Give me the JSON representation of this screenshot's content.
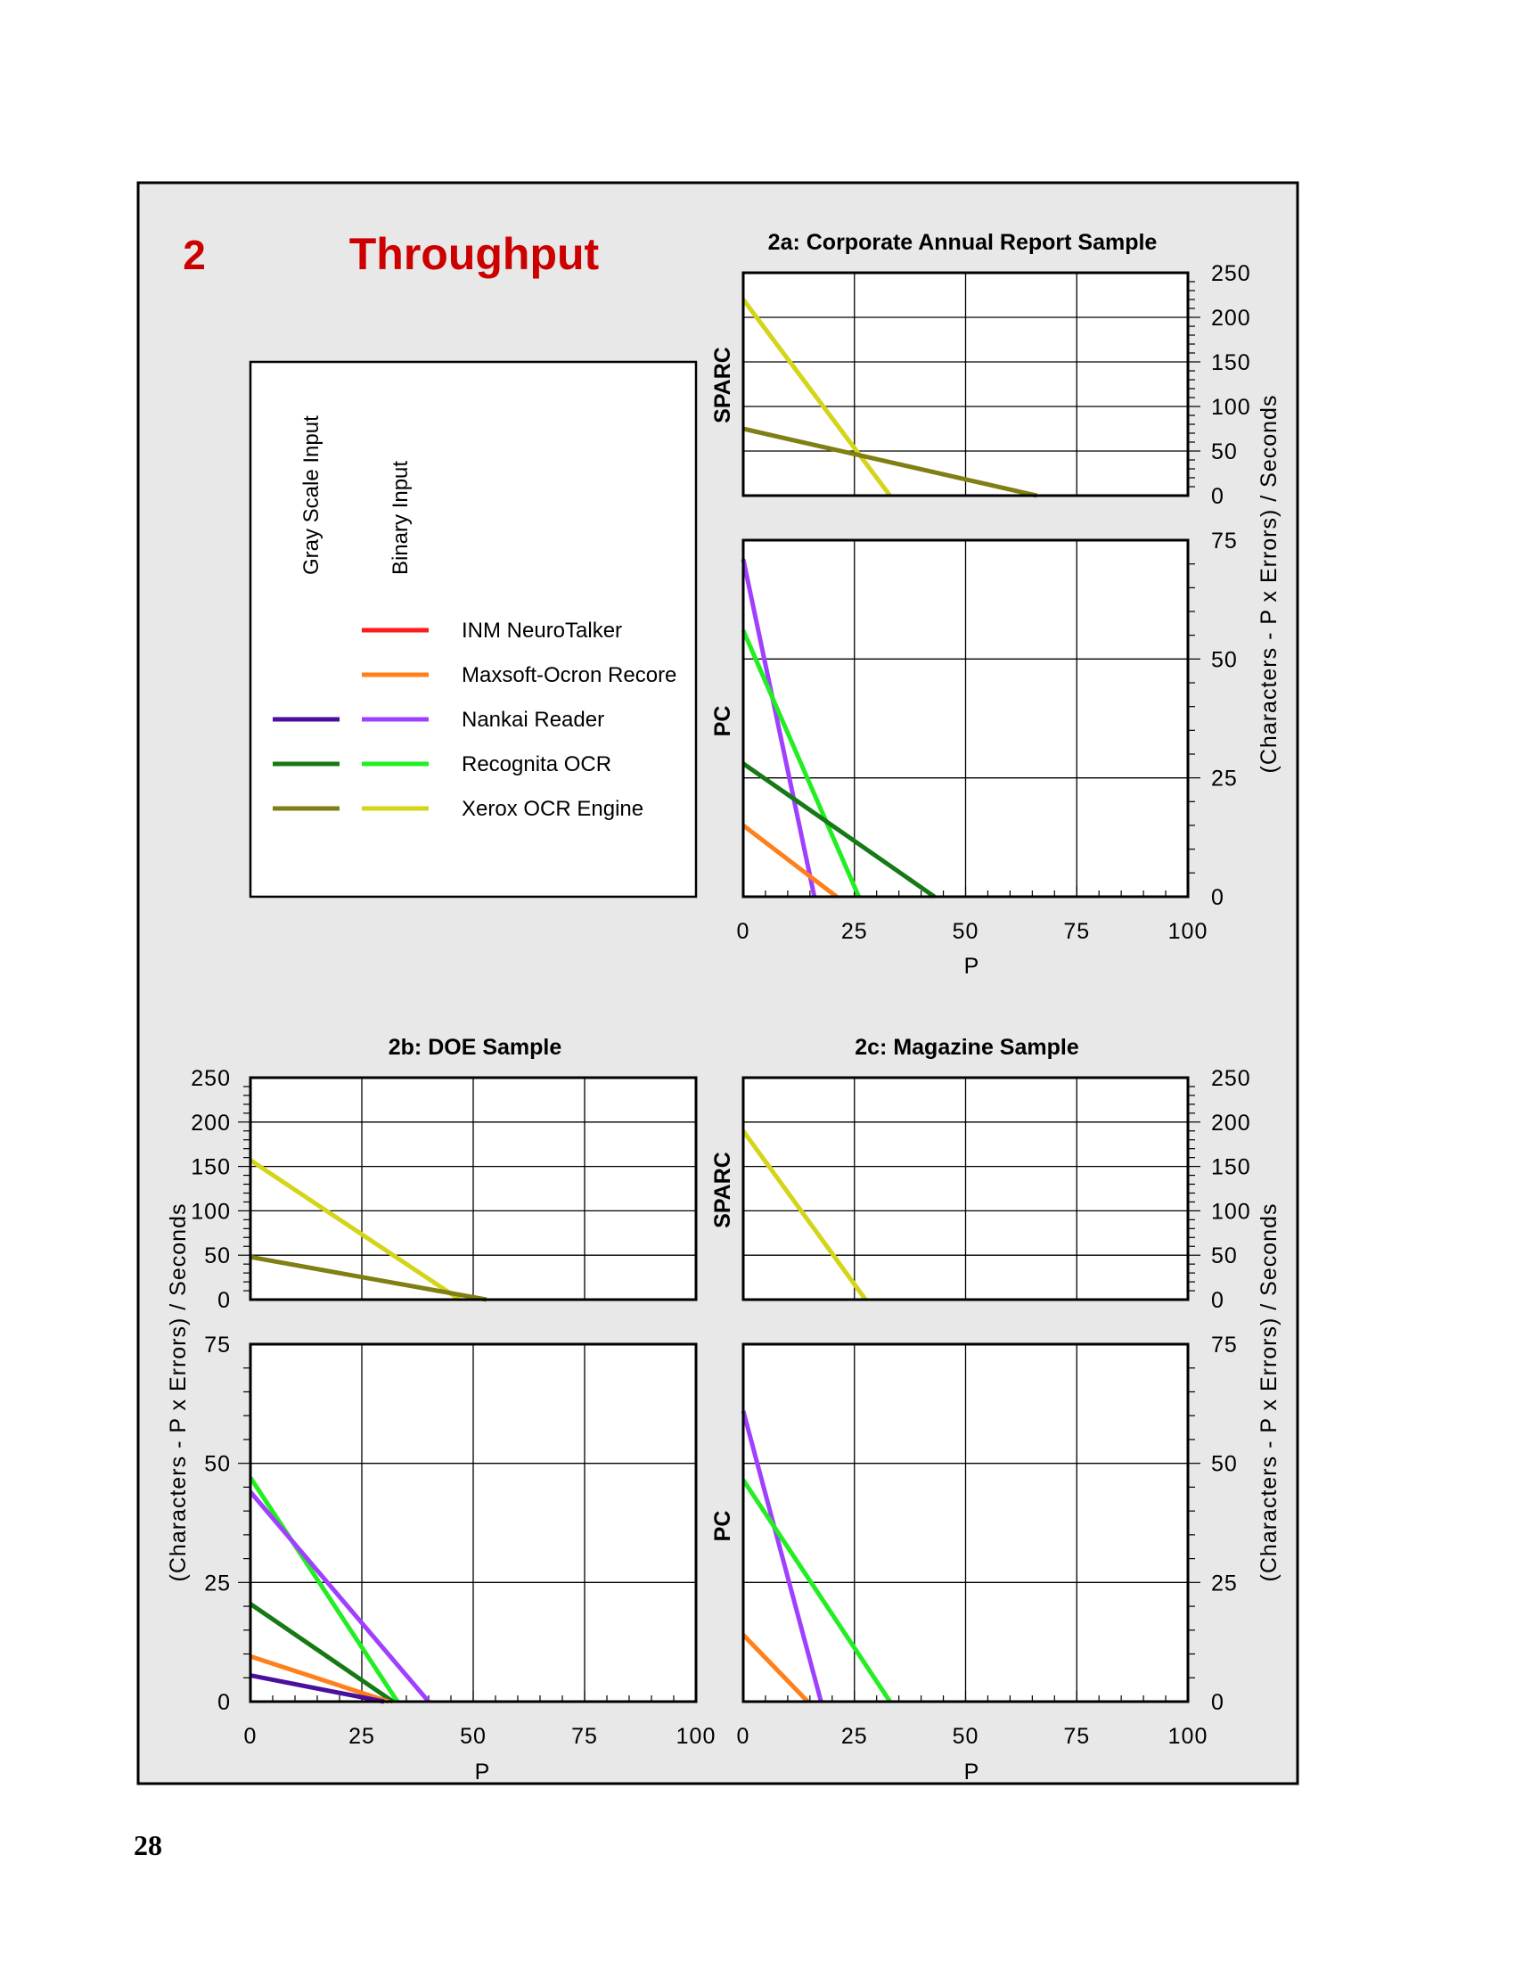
{
  "section": {
    "number": "2",
    "title": "Throughput"
  },
  "colors": {
    "title_red": "#cc0000",
    "panel_bg": "#e8e8e8",
    "plot_bg": "#ffffff",
    "axis": "#000000"
  },
  "legend": {
    "column_headers": [
      "Gray Scale Input",
      "Binary Input"
    ],
    "entries": [
      {
        "label": "INM NeuroTalker",
        "gray_color": null,
        "binary_color": "#ff1a1a"
      },
      {
        "label": "Maxsoft-Ocron Recore",
        "gray_color": null,
        "binary_color": "#ff7f1a"
      },
      {
        "label": "Nankai Reader",
        "gray_color": "#4b0fa0",
        "binary_color": "#a040ff"
      },
      {
        "label": "Recognita OCR",
        "gray_color": "#157a15",
        "binary_color": "#22ee22"
      },
      {
        "label": "Xerox OCR Engine",
        "gray_color": "#7f7f14",
        "binary_color": "#d4d41a"
      }
    ]
  },
  "page_number": "28",
  "chart_data": [
    {
      "id": "2a",
      "type": "line",
      "title": "2a:  Corporate Annual Report Sample",
      "xlabel": "P",
      "ylabel": "(Characters  -  P  x  Errors)  /  Seconds",
      "xlim": [
        0,
        100
      ],
      "x_ticks": [
        "0",
        "25",
        "50",
        "75",
        "100"
      ],
      "subplots": [
        {
          "label": "SPARC",
          "ylim": [
            0,
            250
          ],
          "y_ticks": [
            "250",
            "200",
            "150",
            "100",
            "50",
            "0"
          ],
          "series": [
            {
              "system": "Xerox OCR Engine",
              "input": "Binary",
              "color": "#d4d41a",
              "x": [
                0,
                33
              ],
              "y": [
                220,
                0
              ]
            },
            {
              "system": "Xerox OCR Engine",
              "input": "Gray Scale",
              "color": "#7f7f14",
              "x": [
                0,
                66
              ],
              "y": [
                75,
                0
              ]
            }
          ]
        },
        {
          "label": "PC",
          "ylim": [
            0,
            75
          ],
          "y_ticks": [
            "75",
            "50",
            "25",
            "0"
          ],
          "series": [
            {
              "system": "Nankai Reader",
              "input": "Binary",
              "color": "#a040ff",
              "x": [
                0,
                16
              ],
              "y": [
                71,
                0
              ]
            },
            {
              "system": "Recognita OCR",
              "input": "Binary",
              "color": "#22ee22",
              "x": [
                0,
                26
              ],
              "y": [
                56,
                0
              ]
            },
            {
              "system": "Recognita OCR",
              "input": "Gray Scale",
              "color": "#157a15",
              "x": [
                0,
                43
              ],
              "y": [
                28,
                0
              ]
            },
            {
              "system": "Maxsoft-Ocron Recore",
              "input": "Binary",
              "color": "#ff7f1a",
              "x": [
                0,
                21
              ],
              "y": [
                15,
                0
              ]
            }
          ]
        }
      ]
    },
    {
      "id": "2b",
      "type": "line",
      "title": "2b:  DOE Sample",
      "xlabel": "P",
      "ylabel": "(Characters  -  P  x  Errors)  /  Seconds",
      "xlim": [
        0,
        100
      ],
      "x_ticks": [
        "0",
        "25",
        "50",
        "75",
        "100"
      ],
      "subplots": [
        {
          "label": "",
          "ylim": [
            0,
            250
          ],
          "y_ticks": [
            "250",
            "200",
            "150",
            "100",
            "50",
            "0"
          ],
          "series": [
            {
              "system": "Xerox OCR Engine",
              "input": "Binary",
              "color": "#d4d41a",
              "x": [
                0,
                47
              ],
              "y": [
                157,
                0
              ]
            },
            {
              "system": "Xerox OCR Engine",
              "input": "Gray Scale",
              "color": "#7f7f14",
              "x": [
                0,
                53
              ],
              "y": [
                48,
                0
              ]
            }
          ]
        },
        {
          "label": "",
          "ylim": [
            0,
            75
          ],
          "y_ticks": [
            "75",
            "50",
            "25",
            "0"
          ],
          "series": [
            {
              "system": "Recognita OCR",
              "input": "Binary",
              "color": "#22ee22",
              "x": [
                0,
                33
              ],
              "y": [
                47,
                0
              ]
            },
            {
              "system": "Nankai Reader",
              "input": "Binary",
              "color": "#a040ff",
              "x": [
                0,
                40
              ],
              "y": [
                44,
                0
              ]
            },
            {
              "system": "Recognita OCR",
              "input": "Gray Scale",
              "color": "#157a15",
              "x": [
                0,
                32
              ],
              "y": [
                20.5,
                0
              ]
            },
            {
              "system": "Maxsoft-Ocron Recore",
              "input": "Binary",
              "color": "#ff7f1a",
              "x": [
                0,
                31
              ],
              "y": [
                9.5,
                0
              ]
            },
            {
              "system": "Nankai Reader",
              "input": "Gray Scale",
              "color": "#4b0fa0",
              "x": [
                0,
                30
              ],
              "y": [
                5.5,
                0
              ]
            }
          ]
        }
      ]
    },
    {
      "id": "2c",
      "type": "line",
      "title": "2c:  Magazine Sample",
      "xlabel": "P",
      "ylabel": "(Characters  -  P  x  Errors)  /  Seconds",
      "xlim": [
        0,
        100
      ],
      "x_ticks": [
        "0",
        "25",
        "50",
        "75",
        "100"
      ],
      "subplots": [
        {
          "label": "SPARC",
          "ylim": [
            0,
            250
          ],
          "y_ticks": [
            "250",
            "200",
            "150",
            "100",
            "50",
            "0"
          ],
          "series": [
            {
              "system": "Xerox OCR Engine",
              "input": "Binary",
              "color": "#d4d41a",
              "x": [
                0,
                27.5
              ],
              "y": [
                190,
                0
              ]
            }
          ]
        },
        {
          "label": "PC",
          "ylim": [
            0,
            75
          ],
          "y_ticks": [
            "75",
            "50",
            "25",
            "0"
          ],
          "series": [
            {
              "system": "Nankai Reader",
              "input": "Binary",
              "color": "#a040ff",
              "x": [
                0,
                17.5
              ],
              "y": [
                61,
                0
              ]
            },
            {
              "system": "Recognita OCR",
              "input": "Binary",
              "color": "#22ee22",
              "x": [
                0,
                33
              ],
              "y": [
                46.5,
                0
              ]
            },
            {
              "system": "Maxsoft-Ocron Recore",
              "input": "Binary",
              "color": "#ff7f1a",
              "x": [
                0,
                14.5
              ],
              "y": [
                14,
                0
              ]
            }
          ]
        }
      ]
    }
  ]
}
